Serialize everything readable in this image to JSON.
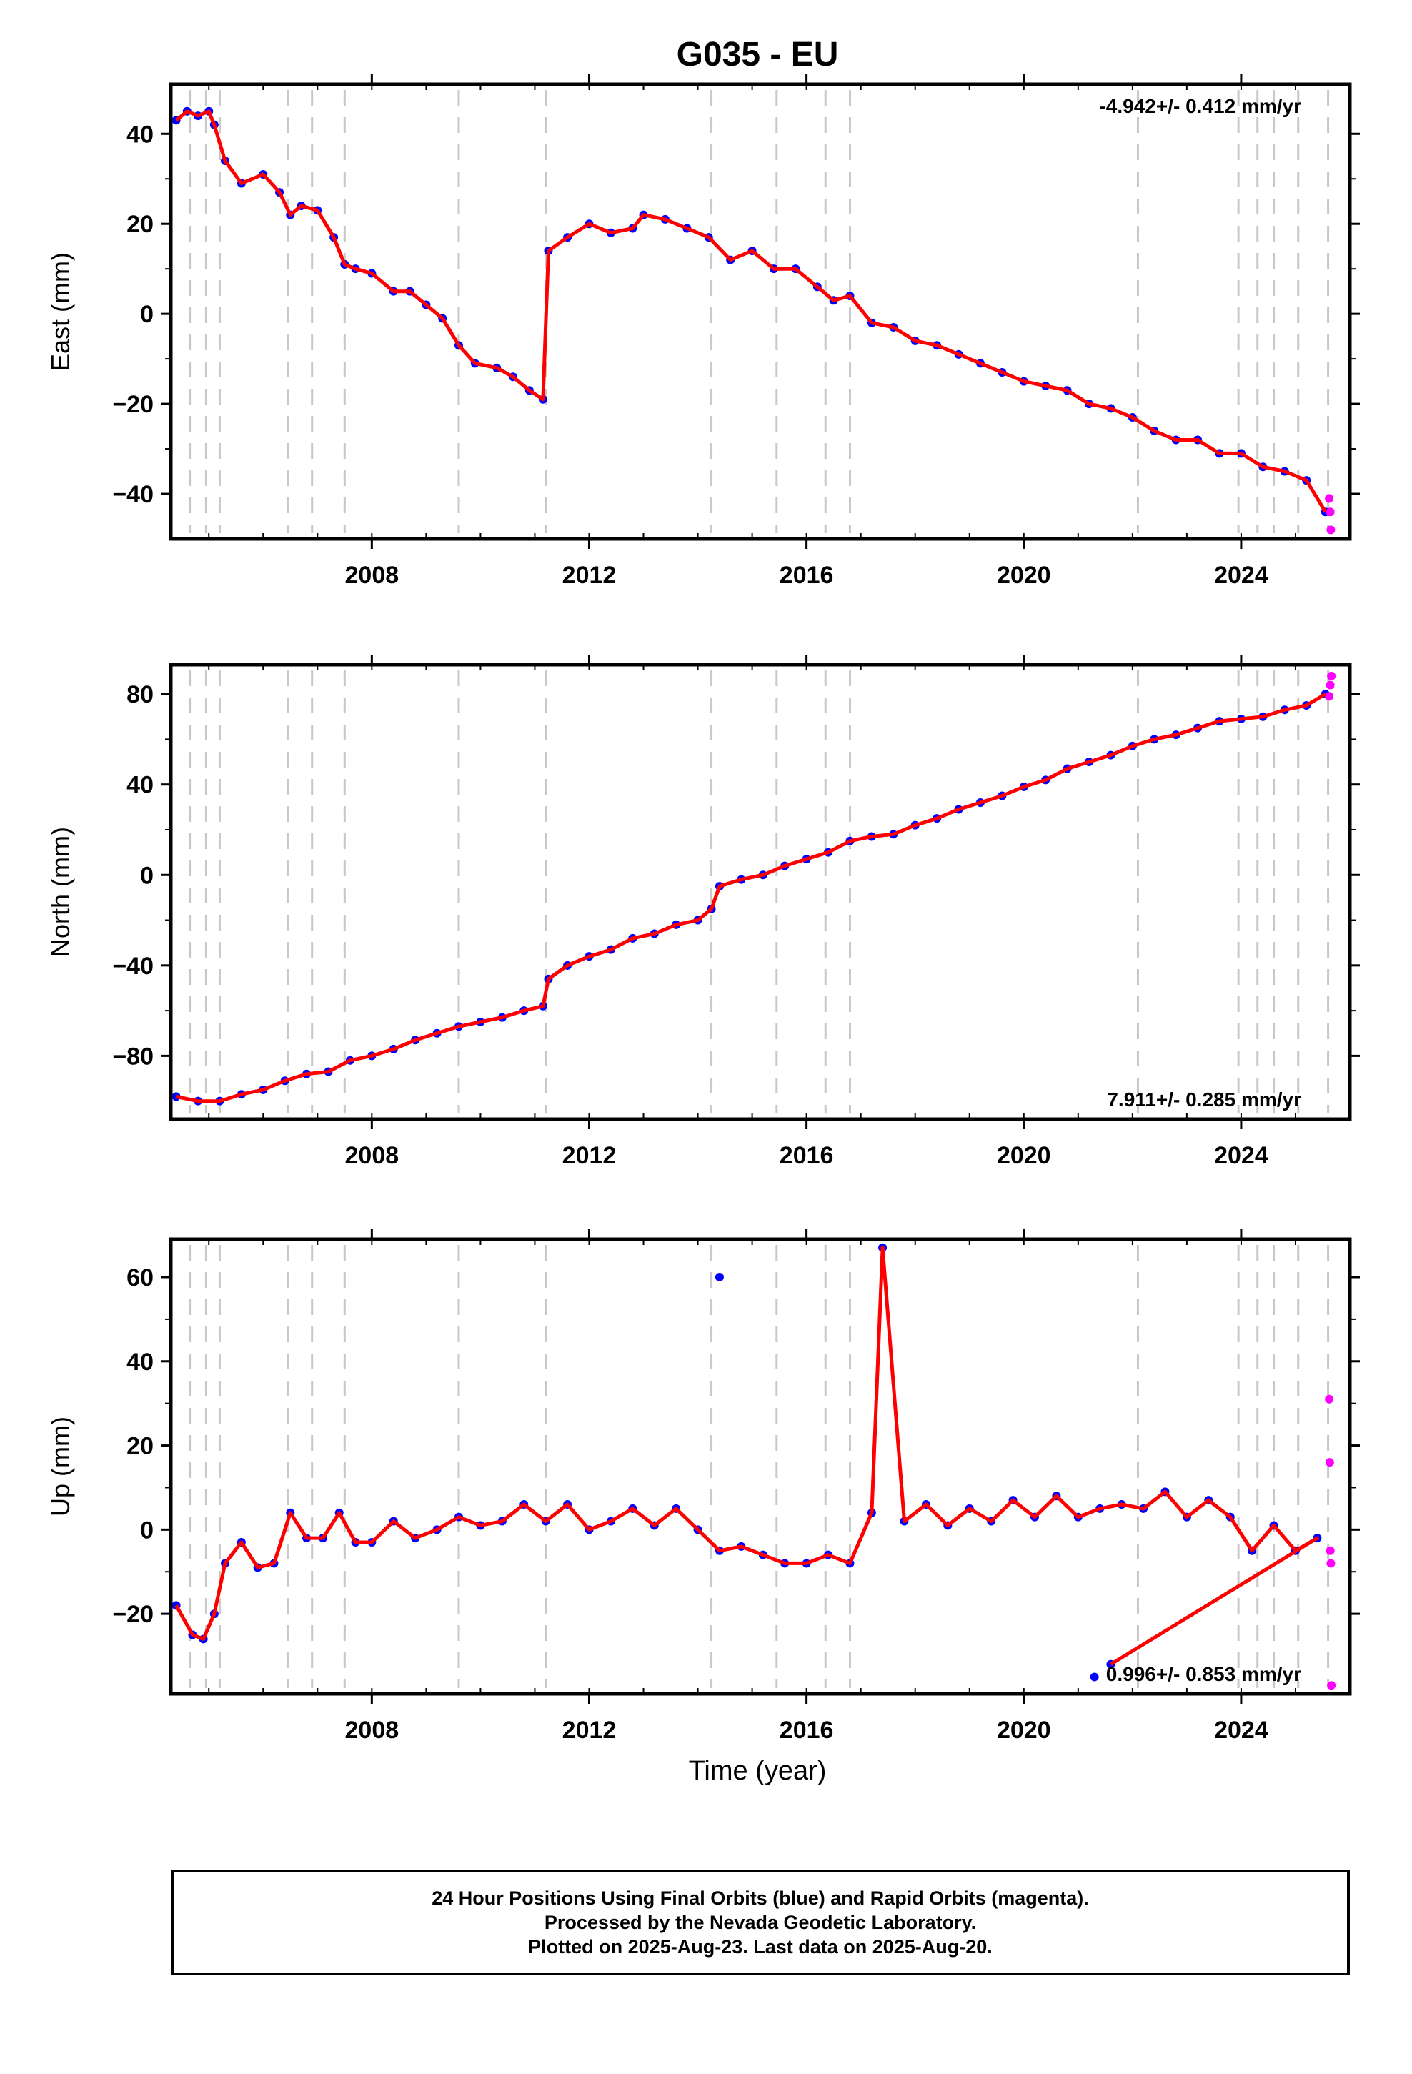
{
  "title": "G035 - EU",
  "xlabel": "Time (year)",
  "caption": [
    "24 Hour Positions Using Final Orbits (blue) and Rapid Orbits (magenta).",
    "Processed by the Nevada Geodetic Laboratory.",
    "Plotted on 2025-Aug-23. Last data on 2025-Aug-20."
  ],
  "colors": {
    "final": "#0000ff",
    "rapid": "#ff00ff",
    "model": "#ff0000",
    "events": "#c8c8c8"
  },
  "chart_data": [
    {
      "type": "scatter",
      "name": "East",
      "ylabel": "East (mm)",
      "rate_text": "-4.942+/- 0.412 mm/yr",
      "rate_position": "top-right",
      "xlim": [
        2004.3,
        2026.0
      ],
      "ylim": [
        -50,
        51
      ],
      "xticks": [
        2008,
        2012,
        2016,
        2020,
        2024
      ],
      "yticks": [
        -40,
        -20,
        0,
        20,
        40
      ],
      "event_lines": [
        2004.65,
        2004.95,
        2005.2,
        2006.45,
        2006.9,
        2007.5,
        2009.6,
        2011.2,
        2014.25,
        2015.45,
        2016.35,
        2016.8,
        2022.1,
        2023.95,
        2024.3,
        2024.6,
        2025.05,
        2025.6
      ],
      "series": [
        {
          "name": "Final Orbits",
          "color": "#0000ff",
          "x": [
            2004.4,
            2004.6,
            2004.8,
            2005.0,
            2005.1,
            2005.3,
            2005.6,
            2006.0,
            2006.3,
            2006.5,
            2006.7,
            2007.0,
            2007.3,
            2007.5,
            2007.7,
            2008.0,
            2008.4,
            2008.7,
            2009.0,
            2009.3,
            2009.6,
            2009.9,
            2010.3,
            2010.6,
            2010.9,
            2011.15,
            2011.25,
            2011.6,
            2012.0,
            2012.4,
            2012.8,
            2013.0,
            2013.4,
            2013.8,
            2014.2,
            2014.6,
            2015.0,
            2015.4,
            2015.8,
            2016.2,
            2016.5,
            2016.8,
            2017.2,
            2017.6,
            2018.0,
            2018.4,
            2018.8,
            2019.2,
            2019.6,
            2020.0,
            2020.4,
            2020.8,
            2021.2,
            2021.6,
            2022.0,
            2022.4,
            2022.8,
            2023.2,
            2023.6,
            2024.0,
            2024.4,
            2024.8,
            2025.2,
            2025.55
          ],
          "values": [
            43,
            45,
            44,
            45,
            42,
            34,
            29,
            31,
            27,
            22,
            24,
            23,
            17,
            11,
            10,
            9,
            5,
            5,
            2,
            -1,
            -7,
            -11,
            -12,
            -14,
            -17,
            -19,
            14,
            17,
            20,
            18,
            19,
            22,
            21,
            19,
            17,
            12,
            14,
            10,
            10,
            6,
            3,
            4,
            -2,
            -3,
            -6,
            -7,
            -9,
            -11,
            -13,
            -15,
            -16,
            -17,
            -20,
            -21,
            -23,
            -26,
            -28,
            -28,
            -31,
            -31,
            -34,
            -35,
            -37,
            -44
          ]
        },
        {
          "name": "Rapid Orbits",
          "color": "#ff00ff",
          "x": [
            2025.62,
            2025.64,
            2025.65
          ],
          "values": [
            -41,
            -44,
            -48
          ]
        }
      ]
    },
    {
      "type": "scatter",
      "name": "North",
      "ylabel": "North (mm)",
      "rate_text": "7.911+/- 0.285 mm/yr",
      "rate_position": "bottom-right",
      "xlim": [
        2004.3,
        2026.0
      ],
      "ylim": [
        -108,
        93
      ],
      "xticks": [
        2008,
        2012,
        2016,
        2020,
        2024
      ],
      "yticks": [
        -80,
        -40,
        0,
        40,
        80
      ],
      "event_lines": [
        2004.65,
        2004.95,
        2005.2,
        2006.45,
        2006.9,
        2007.5,
        2009.6,
        2011.2,
        2014.25,
        2015.45,
        2016.35,
        2016.8,
        2022.1,
        2023.95,
        2024.3,
        2024.6,
        2025.05,
        2025.6
      ],
      "series": [
        {
          "name": "Final Orbits",
          "color": "#0000ff",
          "x": [
            2004.4,
            2004.8,
            2005.2,
            2005.6,
            2006.0,
            2006.4,
            2006.8,
            2007.2,
            2007.6,
            2008.0,
            2008.4,
            2008.8,
            2009.2,
            2009.6,
            2010.0,
            2010.4,
            2010.8,
            2011.15,
            2011.25,
            2011.6,
            2012.0,
            2012.4,
            2012.8,
            2013.2,
            2013.6,
            2014.0,
            2014.25,
            2014.4,
            2014.8,
            2015.2,
            2015.6,
            2016.0,
            2016.4,
            2016.8,
            2017.2,
            2017.6,
            2018.0,
            2018.4,
            2018.8,
            2019.2,
            2019.6,
            2020.0,
            2020.4,
            2020.8,
            2021.2,
            2021.6,
            2022.0,
            2022.4,
            2022.8,
            2023.2,
            2023.6,
            2024.0,
            2024.4,
            2024.8,
            2025.2,
            2025.55
          ],
          "values": [
            -98,
            -100,
            -100,
            -97,
            -95,
            -91,
            -88,
            -87,
            -82,
            -80,
            -77,
            -73,
            -70,
            -67,
            -65,
            -63,
            -60,
            -58,
            -46,
            -40,
            -36,
            -33,
            -28,
            -26,
            -22,
            -20,
            -15,
            -5,
            -2,
            0,
            4,
            7,
            10,
            15,
            17,
            18,
            22,
            25,
            29,
            32,
            35,
            39,
            42,
            47,
            50,
            53,
            57,
            60,
            62,
            65,
            68,
            69,
            70,
            73,
            75,
            80
          ]
        },
        {
          "name": "Rapid Orbits",
          "color": "#ff00ff",
          "x": [
            2025.62,
            2025.64,
            2025.66
          ],
          "values": [
            79,
            84,
            88
          ]
        }
      ]
    },
    {
      "type": "scatter",
      "name": "Up",
      "ylabel": "Up (mm)",
      "rate_text": "0.996+/- 0.853 mm/yr",
      "rate_position": "bottom-right",
      "xlim": [
        2004.3,
        2026.0
      ],
      "ylim": [
        -39,
        69
      ],
      "xticks": [
        2008,
        2012,
        2016,
        2020,
        2024
      ],
      "yticks": [
        -20,
        0,
        20,
        40,
        60
      ],
      "event_lines": [
        2004.65,
        2004.95,
        2005.2,
        2006.45,
        2006.9,
        2007.5,
        2009.6,
        2011.2,
        2014.25,
        2015.45,
        2016.35,
        2016.8,
        2022.1,
        2023.95,
        2024.3,
        2024.6,
        2025.05,
        2025.6
      ],
      "series": [
        {
          "name": "Final Orbits",
          "color": "#0000ff",
          "x": [
            2004.4,
            2004.7,
            2004.9,
            2005.1,
            2005.3,
            2005.6,
            2005.9,
            2006.2,
            2006.5,
            2006.8,
            2007.1,
            2007.4,
            2007.7,
            2008.0,
            2008.4,
            2008.8,
            2009.2,
            2009.6,
            2010.0,
            2010.4,
            2010.8,
            2011.2,
            2011.6,
            2012.0,
            2012.4,
            2012.8,
            2013.2,
            2013.6,
            2014.0,
            2014.4,
            2014.8,
            2015.2,
            2015.6,
            2016.0,
            2016.4,
            2016.8,
            2017.2,
            2017.4,
            2017.8,
            2018.2,
            2018.6,
            2019.0,
            2019.4,
            2019.8,
            2020.2,
            2020.6,
            2021.0,
            2021.4,
            2021.8,
            2022.2,
            2022.6,
            2023.0,
            2023.4,
            2023.8,
            2024.2,
            2024.6,
            2025.0,
            2025.4,
            2021.3,
            2014.4,
            2021.6
          ],
          "values": [
            -18,
            -25,
            -26,
            -20,
            -8,
            -3,
            -9,
            -8,
            4,
            -2,
            -2,
            4,
            -3,
            -3,
            2,
            -2,
            0,
            3,
            1,
            2,
            6,
            2,
            6,
            0,
            2,
            5,
            1,
            5,
            0,
            -5,
            -4,
            -6,
            -8,
            -8,
            -6,
            -8,
            4,
            67,
            2,
            6,
            1,
            5,
            2,
            7,
            3,
            8,
            3,
            5,
            6,
            5,
            9,
            3,
            7,
            3,
            -5,
            1,
            -5,
            -2,
            -35,
            60,
            -32
          ]
        },
        {
          "name": "Rapid Orbits",
          "color": "#ff00ff",
          "x": [
            2025.62,
            2025.63,
            2025.64,
            2025.65,
            2025.66
          ],
          "values": [
            31,
            16,
            -5,
            -8,
            -37
          ]
        }
      ]
    }
  ]
}
